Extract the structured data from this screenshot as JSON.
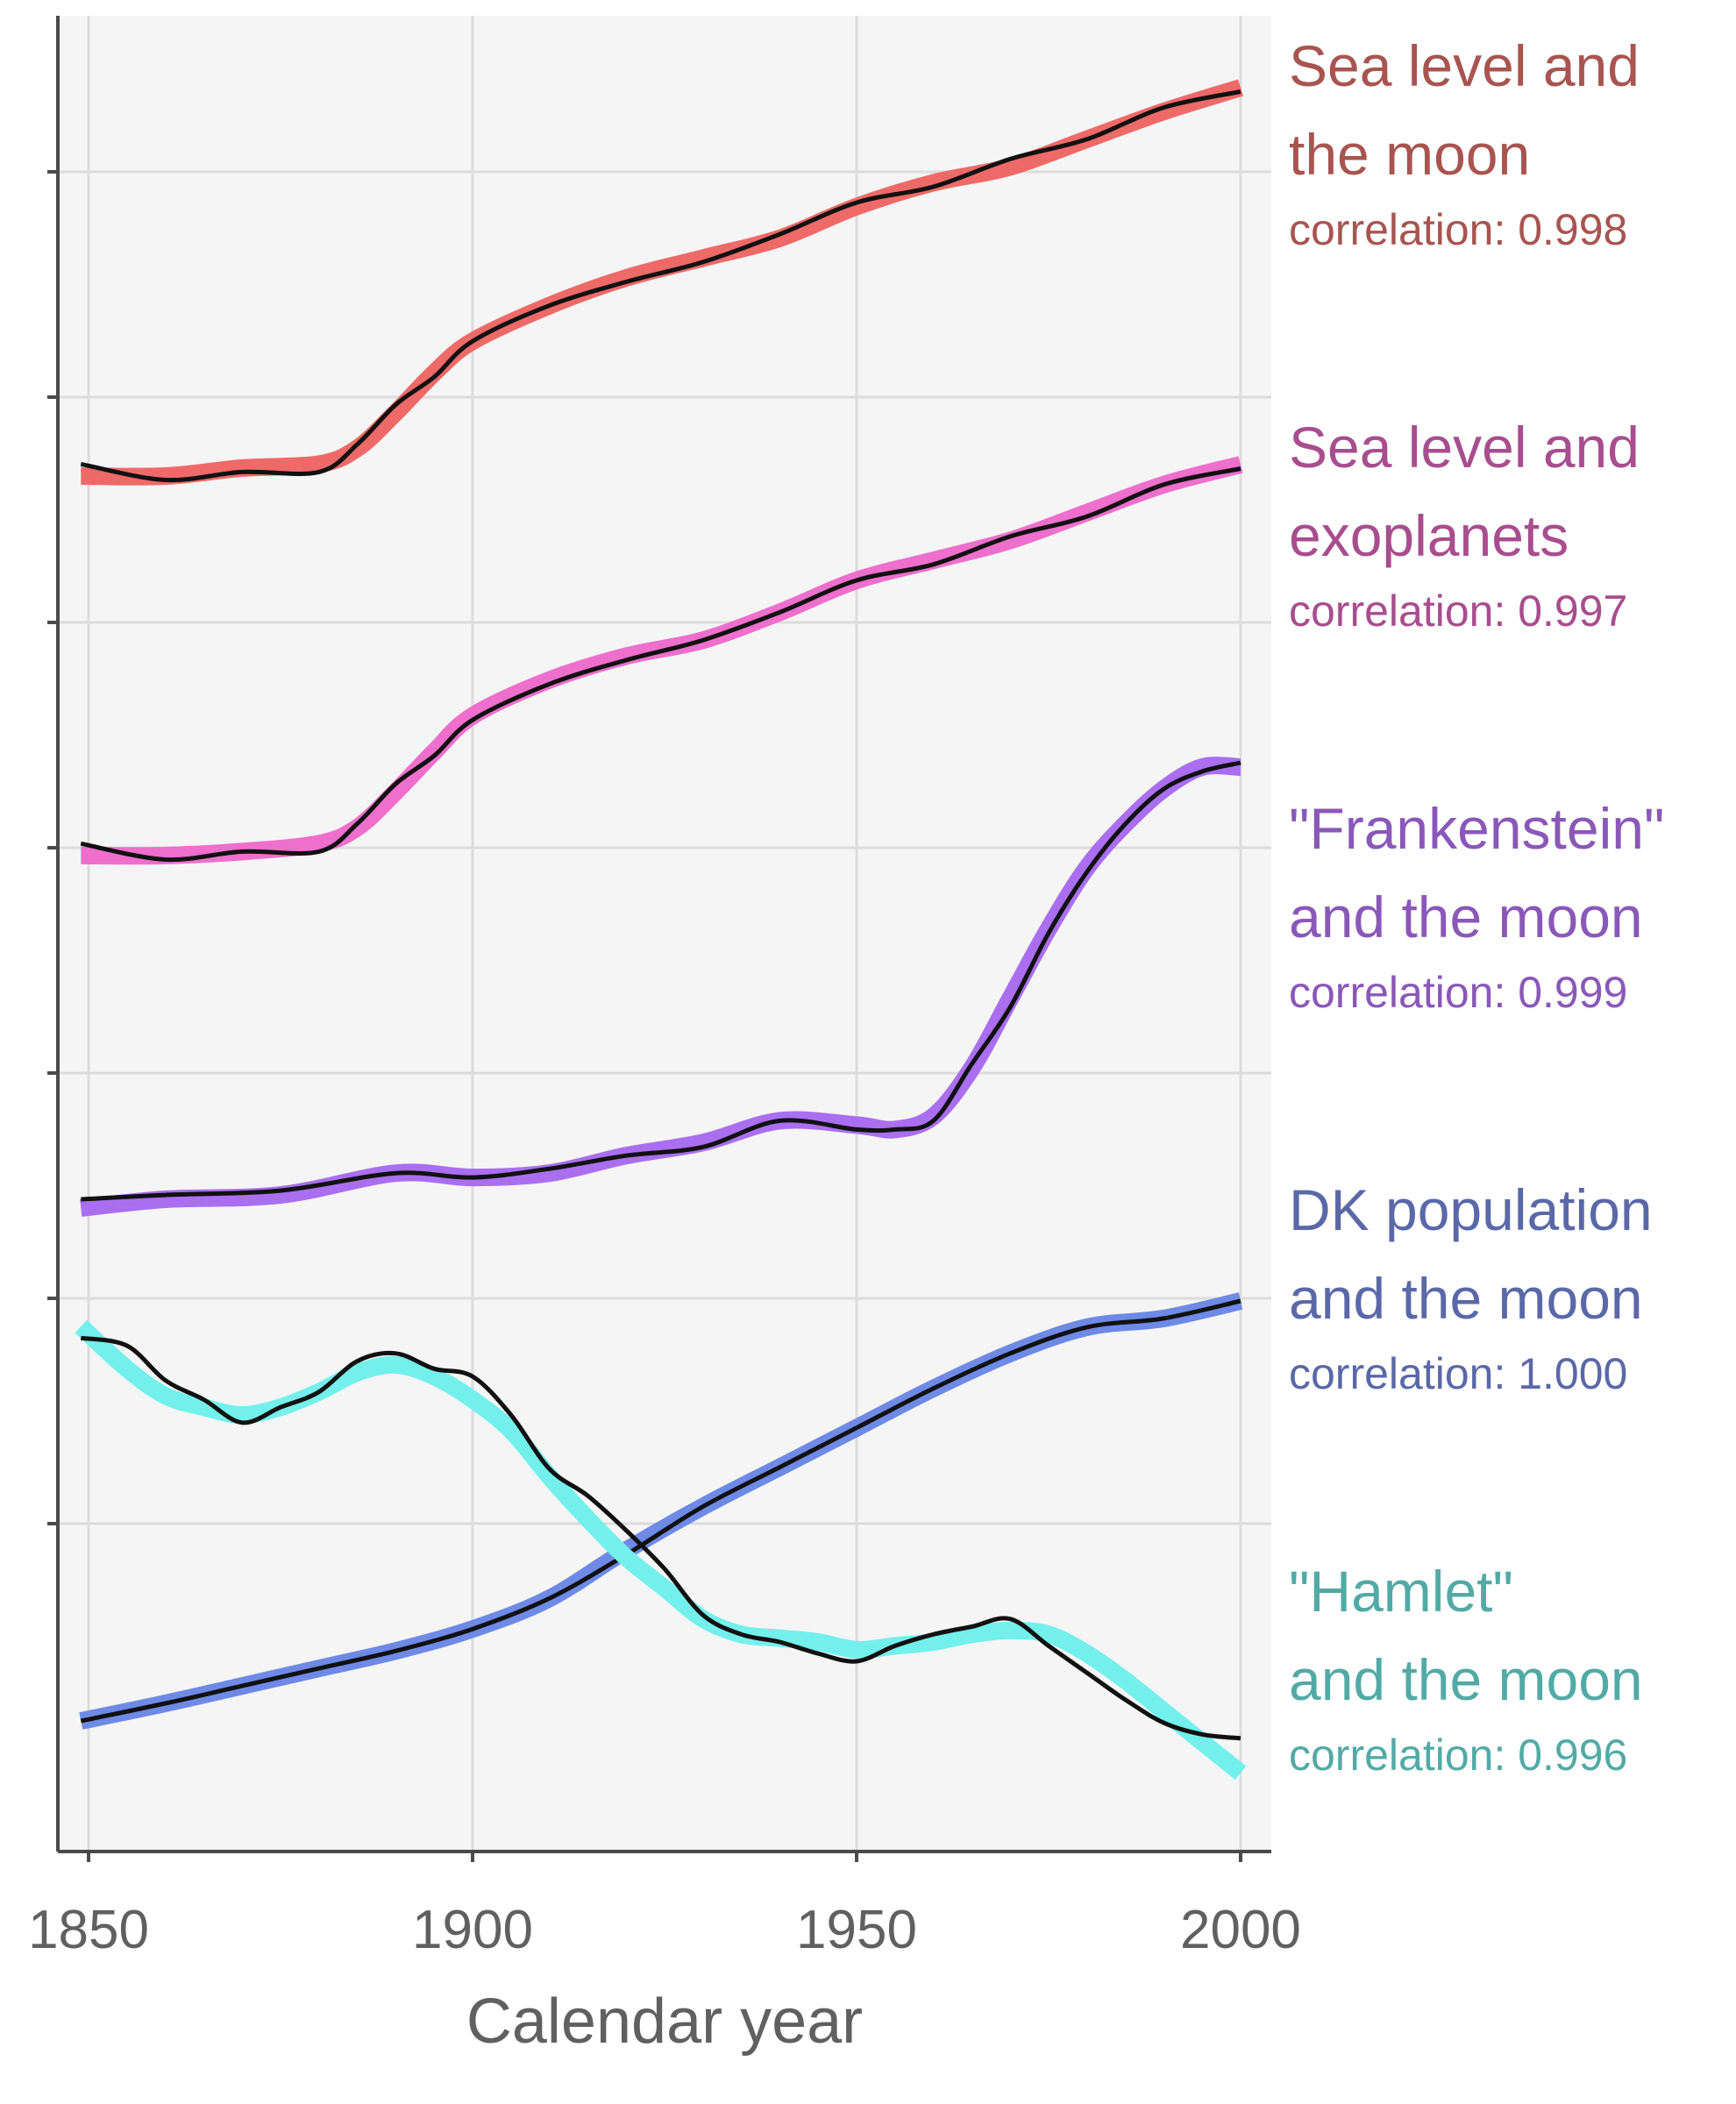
{
  "chart_data": {
    "type": "line",
    "xlabel": "Calendar year",
    "ylabel": "",
    "xlim": [
      1846,
      2004
    ],
    "x_ticks": [
      "1850",
      "1900",
      "1950",
      "2000"
    ],
    "y_tick_count": 7,
    "grid": true,
    "background": "#f5f5f5",
    "y_scale": "none (series stacked, values in relative units 0-1)",
    "panels": [
      {
        "title_lines": [
          "Sea level and",
          "the moon"
        ],
        "correlation_text": "correlation: 0.998",
        "label_color": "#a85450",
        "band_color": "#ee6a68",
        "x": [
          1849,
          1860,
          1870,
          1880,
          1885,
          1890,
          1895,
          1900,
          1910,
          1920,
          1930,
          1940,
          1950,
          1960,
          1970,
          1980,
          1990,
          2000
        ],
        "smooth": [
          0.02,
          0.02,
          0.04,
          0.05,
          0.09,
          0.18,
          0.28,
          0.36,
          0.45,
          0.52,
          0.57,
          0.62,
          0.7,
          0.76,
          0.8,
          0.87,
          0.94,
          1.0
        ],
        "raw": [
          0.05,
          0.01,
          0.03,
          0.03,
          0.1,
          0.2,
          0.27,
          0.36,
          0.45,
          0.51,
          0.56,
          0.63,
          0.71,
          0.75,
          0.82,
          0.87,
          0.95,
          0.99
        ]
      },
      {
        "title_lines": [
          "Sea level and",
          "exoplanets"
        ],
        "correlation_text": "correlation: 0.997",
        "label_color": "#a84d8e",
        "band_color": "#ee6fcc",
        "x": [
          1849,
          1860,
          1870,
          1880,
          1885,
          1890,
          1895,
          1900,
          1910,
          1920,
          1930,
          1940,
          1950,
          1960,
          1970,
          1980,
          1990,
          2000
        ],
        "smooth": [
          0.02,
          0.02,
          0.03,
          0.05,
          0.09,
          0.18,
          0.28,
          0.37,
          0.46,
          0.52,
          0.56,
          0.63,
          0.71,
          0.76,
          0.81,
          0.88,
          0.95,
          1.0
        ],
        "raw": [
          0.05,
          0.01,
          0.03,
          0.03,
          0.1,
          0.2,
          0.27,
          0.36,
          0.45,
          0.51,
          0.56,
          0.63,
          0.71,
          0.75,
          0.82,
          0.87,
          0.95,
          0.99
        ]
      },
      {
        "title_lines": [
          "\"Frankenstein\"",
          "and the moon"
        ],
        "correlation_text": "correlation: 0.999",
        "label_color": "#8a58b8",
        "band_color": "#a96ff0",
        "x": [
          1849,
          1860,
          1875,
          1890,
          1900,
          1910,
          1920,
          1930,
          1940,
          1950,
          1955,
          1960,
          1965,
          1970,
          1975,
          1980,
          1985,
          1990,
          1995,
          2000
        ],
        "smooth": [
          0.0,
          0.02,
          0.03,
          0.08,
          0.07,
          0.08,
          0.12,
          0.15,
          0.2,
          0.19,
          0.18,
          0.21,
          0.32,
          0.48,
          0.64,
          0.78,
          0.88,
          0.96,
          1.01,
          1.01
        ],
        "raw": [
          0.02,
          0.03,
          0.04,
          0.08,
          0.07,
          0.09,
          0.12,
          0.14,
          0.2,
          0.18,
          0.18,
          0.2,
          0.33,
          0.46,
          0.63,
          0.77,
          0.88,
          0.96,
          1.0,
          1.02
        ]
      },
      {
        "title_lines": [
          "DK population",
          "and the moon"
        ],
        "correlation_text": "correlation: 1.000",
        "label_color": "#5b68a8",
        "band_color": "#6e8ae6",
        "x": [
          1849,
          1860,
          1870,
          1880,
          1890,
          1900,
          1910,
          1920,
          1930,
          1940,
          1950,
          1960,
          1970,
          1980,
          1990,
          2000
        ],
        "smooth": [
          0.0,
          0.04,
          0.08,
          0.12,
          0.16,
          0.21,
          0.28,
          0.39,
          0.49,
          0.58,
          0.67,
          0.76,
          0.84,
          0.9,
          0.92,
          0.96
        ],
        "raw": [
          0.0,
          0.04,
          0.08,
          0.12,
          0.16,
          0.21,
          0.28,
          0.38,
          0.49,
          0.58,
          0.67,
          0.76,
          0.84,
          0.9,
          0.92,
          0.96
        ]
      },
      {
        "title_lines": [
          "\"Hamlet\"",
          "and the moon"
        ],
        "correlation_text": "correlation: 0.996",
        "label_color": "#52aaa5",
        "band_color": "#74f0ec",
        "x": [
          1849,
          1855,
          1860,
          1865,
          1870,
          1875,
          1880,
          1885,
          1890,
          1895,
          1900,
          1905,
          1910,
          1915,
          1920,
          1925,
          1930,
          1935,
          1940,
          1945,
          1950,
          1955,
          1960,
          1965,
          1970,
          1975,
          1980,
          1985,
          1990,
          1995,
          2000
        ],
        "smooth": [
          1.05,
          0.94,
          0.87,
          0.84,
          0.82,
          0.84,
          0.88,
          0.93,
          0.95,
          0.92,
          0.86,
          0.78,
          0.66,
          0.55,
          0.45,
          0.37,
          0.29,
          0.25,
          0.24,
          0.23,
          0.21,
          0.22,
          0.23,
          0.25,
          0.26,
          0.25,
          0.2,
          0.13,
          0.05,
          -0.03,
          -0.11
        ],
        "raw": [
          1.02,
          1.0,
          0.91,
          0.86,
          0.8,
          0.84,
          0.88,
          0.96,
          0.98,
          0.94,
          0.92,
          0.82,
          0.68,
          0.61,
          0.52,
          0.42,
          0.3,
          0.25,
          0.23,
          0.2,
          0.18,
          0.22,
          0.25,
          0.27,
          0.29,
          0.22,
          0.15,
          0.08,
          0.02,
          -0.01,
          -0.02
        ]
      }
    ]
  }
}
